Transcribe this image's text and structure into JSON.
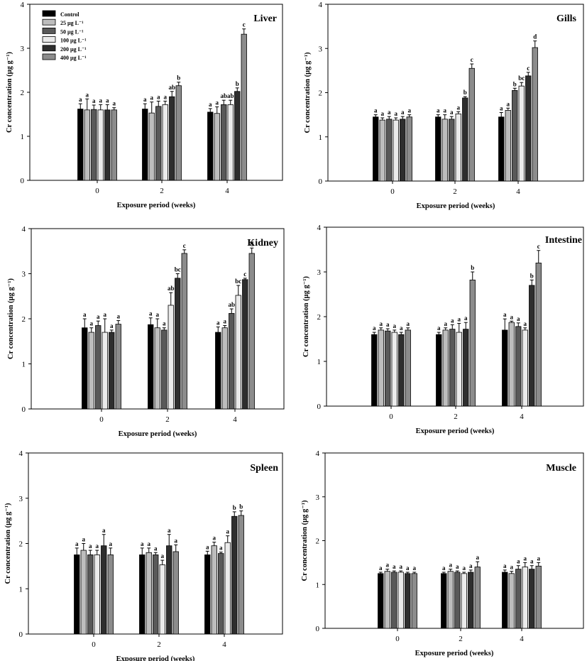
{
  "legend": {
    "items": [
      {
        "label": "Control",
        "color": "#000000"
      },
      {
        "label": "25 µg L⁻¹",
        "color": "#bdbdbd"
      },
      {
        "label": "50 µg L⁻¹",
        "color": "#595959"
      },
      {
        "label": "100 µg L⁻¹",
        "color": "#ebebeb"
      },
      {
        "label": "200 µg L⁻¹",
        "color": "#2e2e2e"
      },
      {
        "label": "400 µg L⁻¹",
        "color": "#8c8c8c"
      }
    ]
  },
  "chart_data": [
    {
      "type": "bar",
      "title": "Liver",
      "xlabel": "Exposure period (weeks)",
      "ylabel": "Cr concentration (µg g⁻¹)",
      "ylim": [
        0,
        4
      ],
      "yticks": [
        0,
        1,
        2,
        3,
        4
      ],
      "categories": [
        "0",
        "2",
        "4"
      ],
      "series": [
        {
          "name": "Control",
          "values": [
            1.62,
            1.62,
            1.55
          ],
          "errors": [
            0.12,
            0.12,
            0.08
          ],
          "letters": [
            "a",
            "a",
            "a"
          ]
        },
        {
          "name": "25 µg L⁻¹",
          "values": [
            1.6,
            1.53,
            1.52
          ],
          "errors": [
            0.25,
            0.25,
            0.15
          ],
          "letters": [
            "a",
            "a",
            "a"
          ]
        },
        {
          "name": "50 µg L⁻¹",
          "values": [
            1.61,
            1.68,
            1.72
          ],
          "errors": [
            0.1,
            0.12,
            0.1
          ],
          "letters": [
            "a",
            "a",
            "ab"
          ]
        },
        {
          "name": "100 µg L⁻¹",
          "values": [
            1.6,
            1.72,
            1.72
          ],
          "errors": [
            0.12,
            0.08,
            0.1
          ],
          "letters": [
            "a",
            "a",
            "ab"
          ]
        },
        {
          "name": "200 µg L⁻¹",
          "values": [
            1.6,
            1.9,
            2.02
          ],
          "errors": [
            0.12,
            0.12,
            0.08
          ],
          "letters": [
            "a",
            "ab",
            "b"
          ]
        },
        {
          "name": "400 µg L⁻¹",
          "values": [
            1.6,
            2.15,
            3.32
          ],
          "errors": [
            0.05,
            0.08,
            0.12
          ],
          "letters": [
            "a",
            "b",
            "c"
          ]
        }
      ]
    },
    {
      "type": "bar",
      "title": "Gills",
      "xlabel": "Exposure period (weeks)",
      "ylabel": "Cr concentration (µg g⁻¹)",
      "ylim": [
        0,
        4
      ],
      "yticks": [
        0,
        1,
        2,
        3,
        4
      ],
      "categories": [
        "0",
        "2",
        "4"
      ],
      "series": [
        {
          "name": "Control",
          "values": [
            1.45,
            1.45,
            1.45
          ],
          "errors": [
            0.05,
            0.05,
            0.1
          ],
          "letters": [
            "a",
            "a",
            "a"
          ]
        },
        {
          "name": "25 µg L⁻¹",
          "values": [
            1.38,
            1.4,
            1.6
          ],
          "errors": [
            0.05,
            0.1,
            0.05
          ],
          "letters": [
            "a",
            "a",
            "a"
          ]
        },
        {
          "name": "50 µg L⁻¹",
          "values": [
            1.4,
            1.4,
            2.05
          ],
          "errors": [
            0.06,
            0.06,
            0.05
          ],
          "letters": [
            "a",
            "a",
            "b"
          ]
        },
        {
          "name": "100 µg L⁻¹",
          "values": [
            1.38,
            1.52,
            2.15
          ],
          "errors": [
            0.05,
            0.05,
            0.08
          ],
          "letters": [
            "a",
            "a",
            "bc"
          ]
        },
        {
          "name": "200 µg L⁻¹",
          "values": [
            1.4,
            1.88,
            2.38
          ],
          "errors": [
            0.06,
            0.03,
            0.08
          ],
          "letters": [
            "a",
            "b",
            "c"
          ]
        },
        {
          "name": "400 µg L⁻¹",
          "values": [
            1.45,
            2.55,
            3.02
          ],
          "errors": [
            0.05,
            0.1,
            0.15
          ],
          "letters": [
            "a",
            "c",
            "d"
          ]
        }
      ]
    },
    {
      "type": "bar",
      "title": "Kidney",
      "xlabel": "Exposure period (weeks)",
      "ylabel": "Cr concentration (µg g⁻¹)",
      "ylim": [
        0,
        4
      ],
      "yticks": [
        0,
        1,
        2,
        3,
        4
      ],
      "categories": [
        "0",
        "2",
        "4"
      ],
      "series": [
        {
          "name": "Control",
          "values": [
            1.8,
            1.87,
            1.7
          ],
          "errors": [
            0.2,
            0.15,
            0.12
          ],
          "letters": [
            "a",
            "a",
            "a"
          ]
        },
        {
          "name": "25 µg L⁻¹",
          "values": [
            1.7,
            1.8,
            1.8
          ],
          "errors": [
            0.1,
            0.2,
            0.05
          ],
          "letters": [
            "a",
            "a",
            "a"
          ]
        },
        {
          "name": "50 µg L⁻¹",
          "values": [
            1.85,
            1.75,
            2.12
          ],
          "errors": [
            0.1,
            0.05,
            0.1
          ],
          "letters": [
            "a",
            "a",
            "ab"
          ]
        },
        {
          "name": "100 µg L⁻¹",
          "values": [
            1.7,
            2.3,
            2.52
          ],
          "errors": [
            0.3,
            0.28,
            0.22
          ],
          "letters": [
            "a",
            "ab",
            "bc"
          ]
        },
        {
          "name": "200 µg L⁻¹",
          "values": [
            1.7,
            2.9,
            2.87
          ],
          "errors": [
            0.05,
            0.1,
            0.03
          ],
          "letters": [
            "a",
            "bc",
            "c"
          ]
        },
        {
          "name": "400 µg L⁻¹",
          "values": [
            1.88,
            3.45,
            3.45
          ],
          "errors": [
            0.08,
            0.08,
            0.12
          ],
          "letters": [
            "a",
            "c",
            "d"
          ]
        }
      ]
    },
    {
      "type": "bar",
      "title": "Intestine",
      "xlabel": "Exposure period (weeks)",
      "ylabel": "Cr concentration (µg g⁻¹)",
      "ylim": [
        0,
        4
      ],
      "yticks": [
        0,
        1,
        2,
        3,
        4
      ],
      "categories": [
        "0",
        "2",
        "4"
      ],
      "series": [
        {
          "name": "Control",
          "values": [
            1.6,
            1.6,
            1.7
          ],
          "errors": [
            0.05,
            0.05,
            0.25
          ],
          "letters": [
            "a",
            "a",
            "a"
          ]
        },
        {
          "name": "25 µg L⁻¹",
          "values": [
            1.7,
            1.7,
            1.87
          ],
          "errors": [
            0.05,
            0.05,
            0.03
          ],
          "letters": [
            "a",
            "a",
            "a"
          ]
        },
        {
          "name": "50 µg L⁻¹",
          "values": [
            1.68,
            1.72,
            1.78
          ],
          "errors": [
            0.05,
            0.1,
            0.08
          ],
          "letters": [
            "a",
            "a",
            "a"
          ]
        },
        {
          "name": "100 µg L⁻¹",
          "values": [
            1.65,
            1.65,
            1.7
          ],
          "errors": [
            0.05,
            0.2,
            0.05
          ],
          "letters": [
            "a",
            "a",
            "a"
          ]
        },
        {
          "name": "200 µg L⁻¹",
          "values": [
            1.6,
            1.72,
            2.7
          ],
          "errors": [
            0.05,
            0.15,
            0.12
          ],
          "letters": [
            "a",
            "a",
            "b"
          ]
        },
        {
          "name": "400 µg L⁻¹",
          "values": [
            1.7,
            2.82,
            3.2
          ],
          "errors": [
            0.05,
            0.18,
            0.28
          ],
          "letters": [
            "a",
            "b",
            "c"
          ]
        }
      ]
    },
    {
      "type": "bar",
      "title": "Spleen",
      "xlabel": "Exposure period (weeks)",
      "ylabel": "Cr concentration (µg g⁻¹)",
      "ylim": [
        0,
        4
      ],
      "yticks": [
        0,
        1,
        2,
        3,
        4
      ],
      "categories": [
        "0",
        "2",
        "4"
      ],
      "series": [
        {
          "name": "Control",
          "values": [
            1.75,
            1.75,
            1.75
          ],
          "errors": [
            0.15,
            0.15,
            0.08
          ],
          "letters": [
            "a",
            "a",
            "a"
          ]
        },
        {
          "name": "25 µg L⁻¹",
          "values": [
            1.85,
            1.8,
            1.95
          ],
          "errors": [
            0.15,
            0.1,
            0.08
          ],
          "letters": [
            "a",
            "a",
            "a"
          ]
        },
        {
          "name": "50 µg L⁻¹",
          "values": [
            1.75,
            1.75,
            1.78
          ],
          "errors": [
            0.1,
            0.05,
            0.03
          ],
          "letters": [
            "a",
            "a",
            "a"
          ]
        },
        {
          "name": "100 µg L⁻¹",
          "values": [
            1.75,
            1.53,
            2.02
          ],
          "errors": [
            0.1,
            0.1,
            0.15
          ],
          "letters": [
            "a",
            "a",
            "a"
          ]
        },
        {
          "name": "200 µg L⁻¹",
          "values": [
            1.95,
            1.95,
            2.6
          ],
          "errors": [
            0.25,
            0.25,
            0.1
          ],
          "letters": [
            "a",
            "a",
            "b"
          ]
        },
        {
          "name": "400 µg L⁻¹",
          "values": [
            1.75,
            1.82,
            2.62
          ],
          "errors": [
            0.15,
            0.15,
            0.1
          ],
          "letters": [
            "a",
            "a",
            "b"
          ]
        }
      ]
    },
    {
      "type": "bar",
      "title": "Muscle",
      "xlabel": "Exposure period (weeks)",
      "ylabel": "Cr concentration (µg g⁻¹)",
      "ylim": [
        0,
        4
      ],
      "yticks": [
        0,
        1,
        2,
        3,
        4
      ],
      "categories": [
        "0",
        "2",
        "4"
      ],
      "series": [
        {
          "name": "Control",
          "values": [
            1.25,
            1.25,
            1.28
          ],
          "errors": [
            0.03,
            0.03,
            0.05
          ],
          "letters": [
            "a",
            "a",
            "a"
          ]
        },
        {
          "name": "25 µg L⁻¹",
          "values": [
            1.3,
            1.3,
            1.25
          ],
          "errors": [
            0.05,
            0.05,
            0.05
          ],
          "letters": [
            "a",
            "a",
            "a"
          ]
        },
        {
          "name": "50 µg L⁻¹",
          "values": [
            1.28,
            1.28,
            1.35
          ],
          "errors": [
            0.03,
            0.03,
            0.08
          ],
          "letters": [
            "a",
            "a",
            "a"
          ]
        },
        {
          "name": "100 µg L⁻¹",
          "values": [
            1.28,
            1.25,
            1.4
          ],
          "errors": [
            0.03,
            0.03,
            0.1
          ],
          "letters": [
            "a",
            "a",
            "a"
          ]
        },
        {
          "name": "200 µg L⁻¹",
          "values": [
            1.25,
            1.28,
            1.35
          ],
          "errors": [
            0.03,
            0.05,
            0.08
          ],
          "letters": [
            "a",
            "a",
            "a"
          ]
        },
        {
          "name": "400 µg L⁻¹",
          "values": [
            1.25,
            1.4,
            1.42
          ],
          "errors": [
            0.03,
            0.12,
            0.08
          ],
          "letters": [
            "a",
            "a",
            "a"
          ]
        }
      ]
    }
  ]
}
